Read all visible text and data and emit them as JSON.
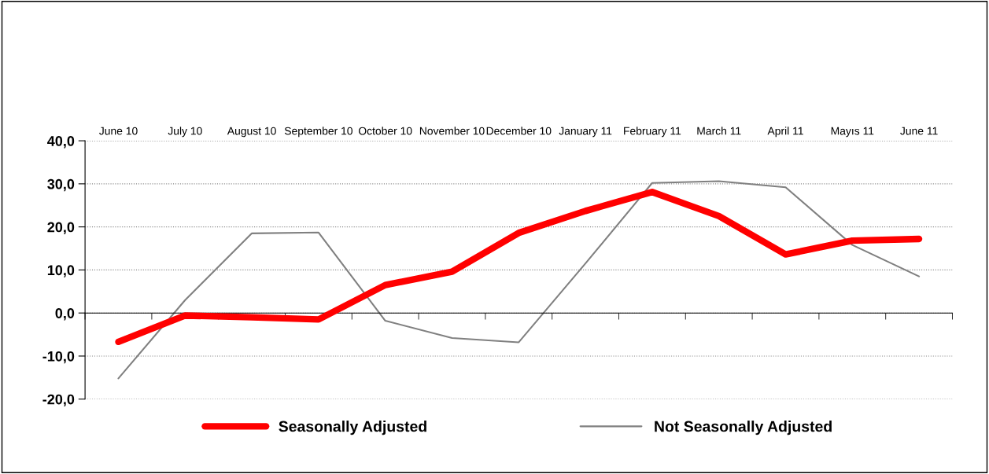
{
  "chart_data": {
    "type": "line",
    "categories": [
      "June 10",
      "July 10",
      "August 10",
      "September 10",
      "October 10",
      "November 10",
      "December 10",
      "January 11",
      "February 11",
      "March 11",
      "April 11",
      "Mayıs 11",
      "June 11"
    ],
    "series": [
      {
        "name": "Seasonally Adjusted",
        "color": "#ff0000",
        "values": [
          -6.7,
          -0.6,
          -1.0,
          -1.5,
          6.5,
          9.6,
          18.6,
          23.7,
          28.1,
          22.5,
          13.6,
          16.8,
          17.2
        ]
      },
      {
        "name": "Not Seasonally Adjusted",
        "color": "#808080",
        "values": [
          -15.2,
          3.0,
          18.5,
          18.7,
          -1.8,
          -5.8,
          -6.8,
          11.5,
          30.2,
          30.6,
          29.2,
          15.8,
          8.5
        ]
      }
    ],
    "ylim": [
      -20,
      40
    ],
    "yticks": [
      {
        "value": -20,
        "label": "-20,0"
      },
      {
        "value": -10,
        "label": "-10,0"
      },
      {
        "value": 0,
        "label": "0,0"
      },
      {
        "value": 10,
        "label": "10,0"
      },
      {
        "value": 20,
        "label": "20,0"
      },
      {
        "value": 30,
        "label": "30,0"
      },
      {
        "value": 40,
        "label": "40,0"
      }
    ],
    "grid": "y",
    "legend": "bottom",
    "marker": "none",
    "line_style": "solid"
  }
}
